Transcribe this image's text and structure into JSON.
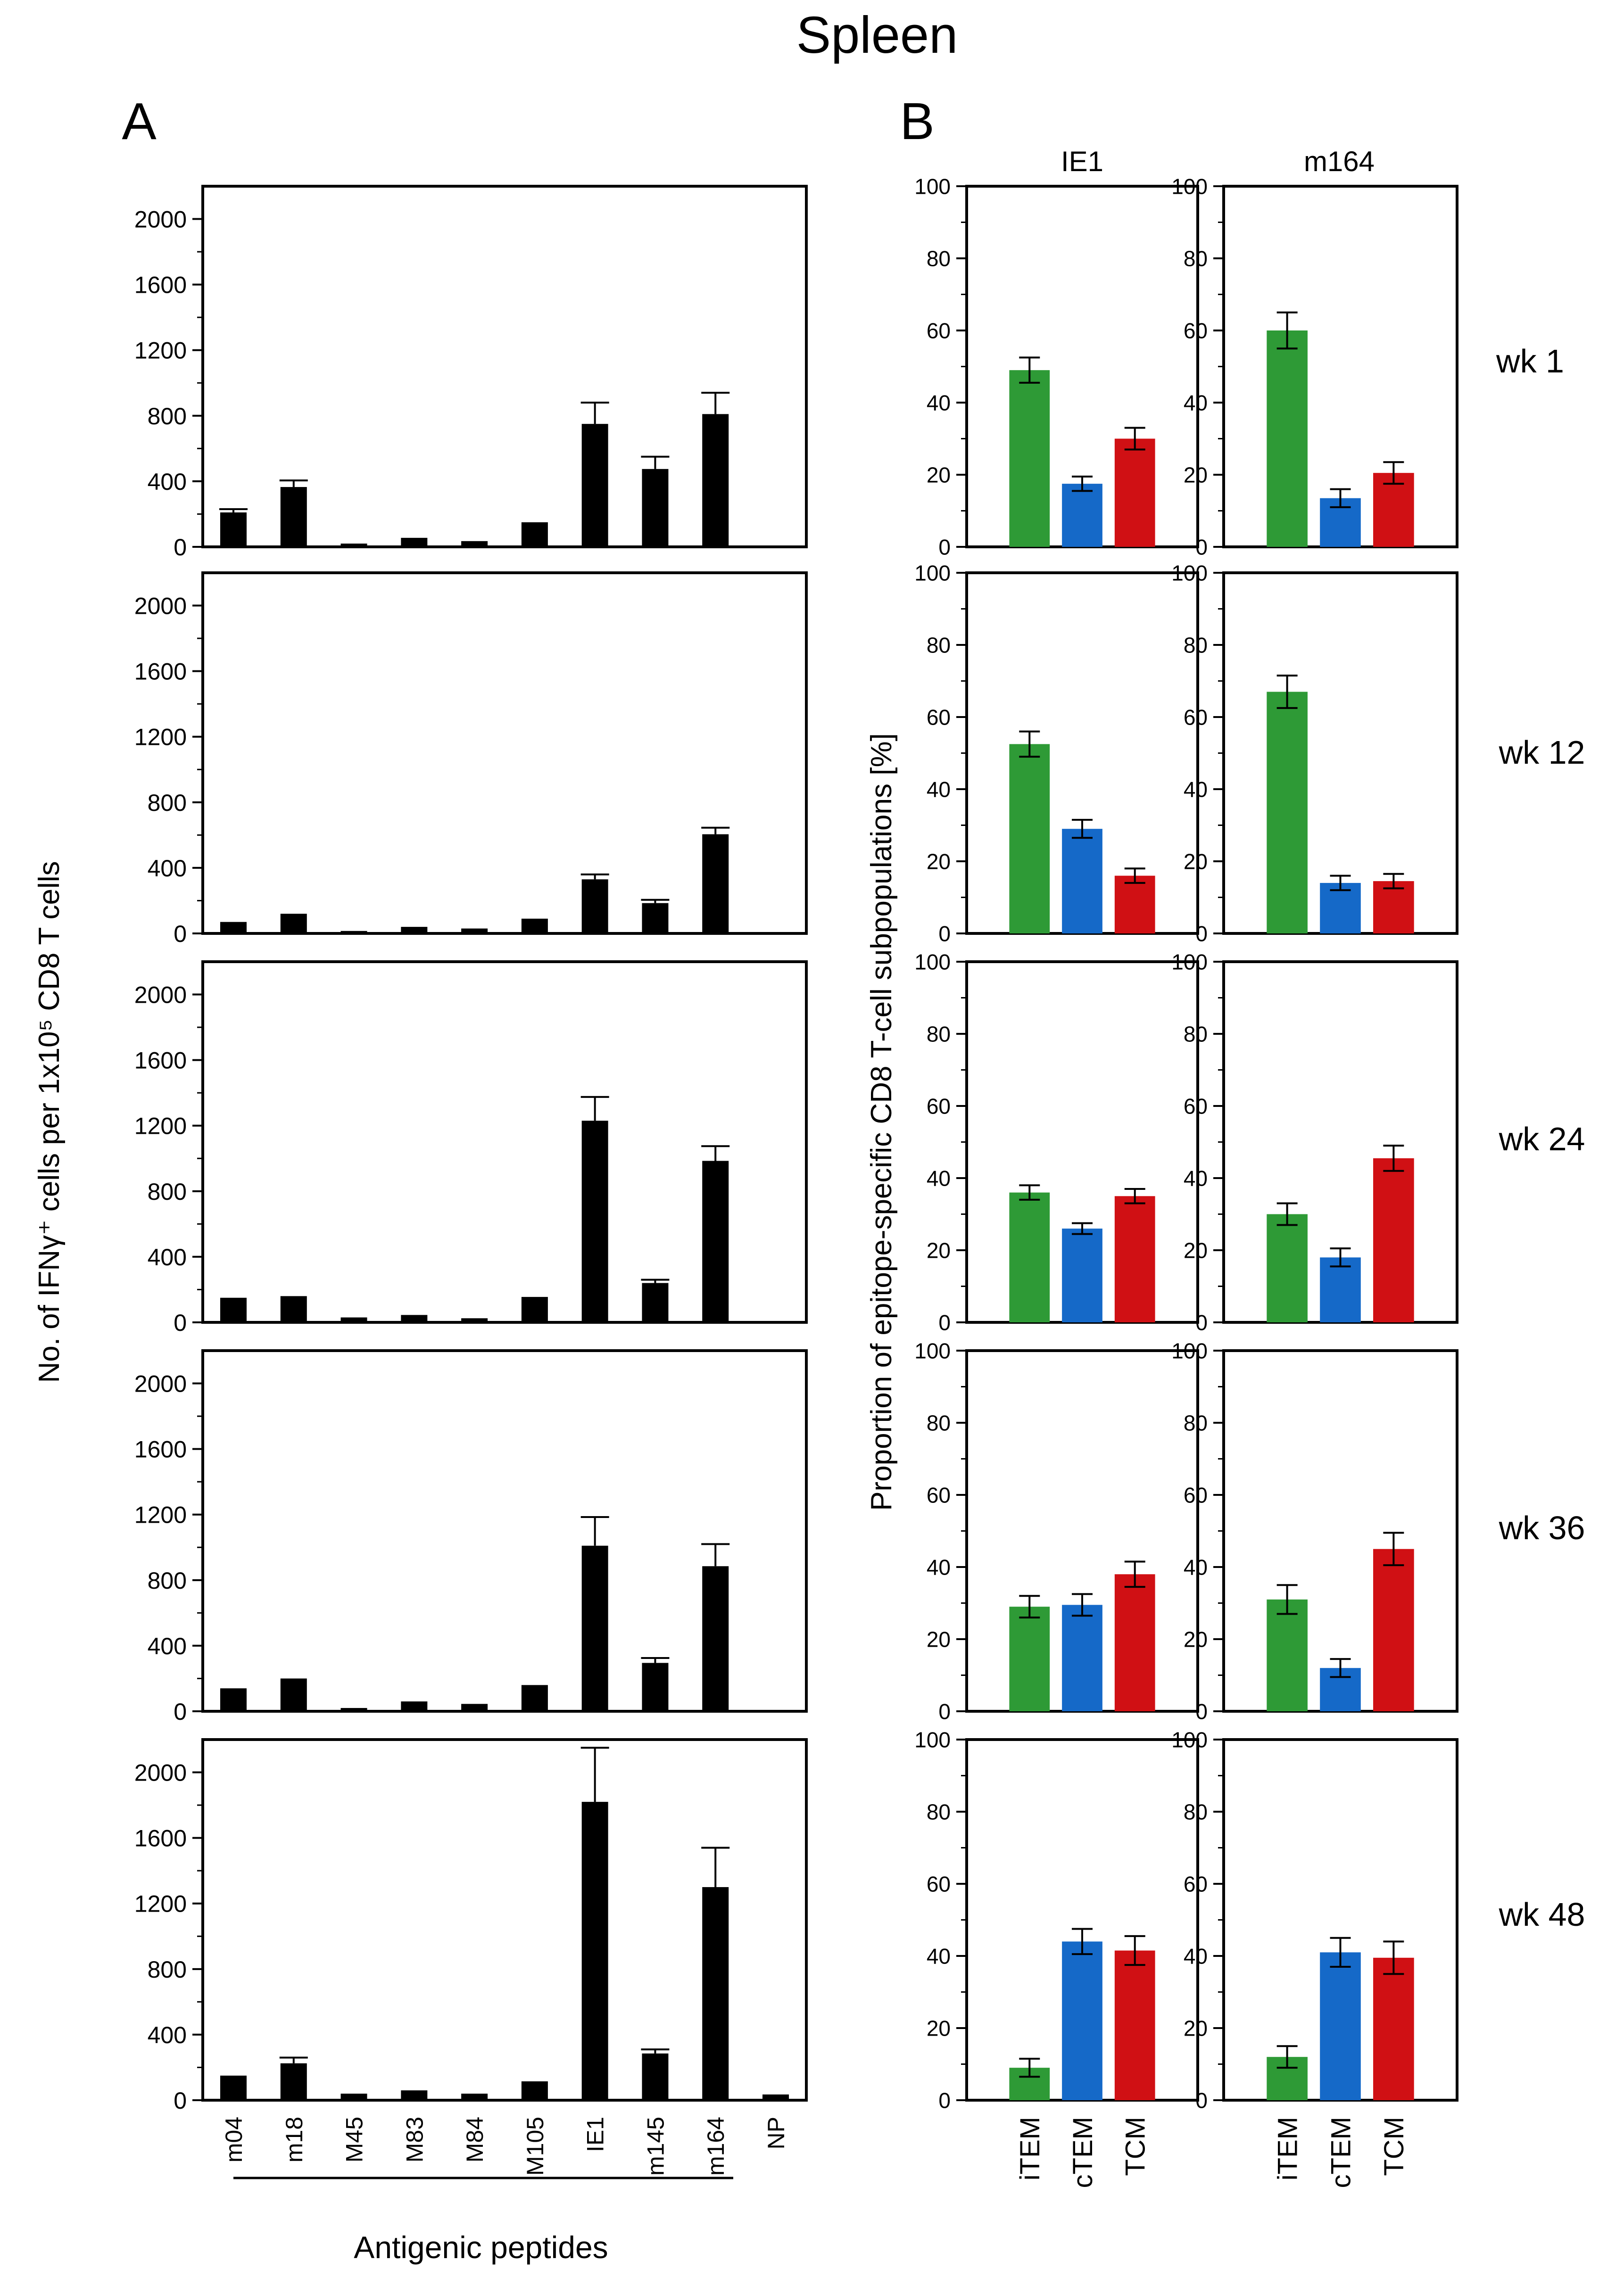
{
  "figure": {
    "title": "Spleen",
    "panel_a_letter": "A",
    "panel_b_letter": "B",
    "panel_a_ylabel": "No. of IFNγ⁺ cells per 1x10⁵ CD8 T cells",
    "panel_a_xlabel": "Antigenic peptides",
    "panel_b_ylabel": "Proportion of epitope-specific CD8 T-cell subpopulations [%]",
    "panel_b_col_titles": [
      "IE1",
      "m164"
    ],
    "row_labels": [
      "wk 1",
      "wk 12",
      "wk 24",
      "wk 36",
      "wk 48"
    ]
  },
  "colors": {
    "bar_a": "#000000",
    "iTEM": "#2e9a36",
    "cTEM": "#1569c8",
    "TCM": "#d01014"
  },
  "chart_data": [
    {
      "type": "bar",
      "panel": "A",
      "row": "wk 1",
      "categories": [
        "m04",
        "m18",
        "M45",
        "M83",
        "M84",
        "M105",
        "IE1",
        "m145",
        "m164",
        "NP"
      ],
      "values": [
        210,
        365,
        20,
        55,
        35,
        150,
        750,
        475,
        810,
        8
      ],
      "errors": [
        20,
        40,
        0,
        0,
        0,
        0,
        130,
        75,
        130,
        0
      ],
      "ylim": [
        0,
        2200
      ],
      "yticks": [
        0,
        400,
        800,
        1200,
        1600,
        2000
      ]
    },
    {
      "type": "bar",
      "panel": "A",
      "row": "wk 12",
      "categories": [
        "m04",
        "m18",
        "M45",
        "M83",
        "M84",
        "M105",
        "IE1",
        "m145",
        "m164",
        "NP"
      ],
      "values": [
        70,
        120,
        15,
        40,
        30,
        90,
        330,
        185,
        605,
        8
      ],
      "errors": [
        0,
        0,
        0,
        0,
        0,
        0,
        30,
        20,
        40,
        0
      ],
      "ylim": [
        0,
        2200
      ],
      "yticks": [
        0,
        400,
        800,
        1200,
        1600,
        2000
      ]
    },
    {
      "type": "bar",
      "panel": "A",
      "row": "wk 24",
      "categories": [
        "m04",
        "m18",
        "M45",
        "M83",
        "M84",
        "M105",
        "IE1",
        "m145",
        "m164",
        "NP"
      ],
      "values": [
        150,
        160,
        30,
        45,
        25,
        155,
        1230,
        240,
        985,
        8
      ],
      "errors": [
        0,
        0,
        0,
        0,
        0,
        0,
        145,
        20,
        90,
        0
      ],
      "ylim": [
        0,
        2200
      ],
      "yticks": [
        0,
        400,
        800,
        1200,
        1600,
        2000
      ]
    },
    {
      "type": "bar",
      "panel": "A",
      "row": "wk 36",
      "categories": [
        "m04",
        "m18",
        "M45",
        "M83",
        "M84",
        "M105",
        "IE1",
        "m145",
        "m164",
        "NP"
      ],
      "values": [
        140,
        200,
        20,
        60,
        45,
        160,
        1010,
        295,
        885,
        8
      ],
      "errors": [
        0,
        0,
        0,
        0,
        0,
        0,
        175,
        30,
        135,
        0
      ],
      "ylim": [
        0,
        2200
      ],
      "yticks": [
        0,
        400,
        800,
        1200,
        1600,
        2000
      ]
    },
    {
      "type": "bar",
      "panel": "A",
      "row": "wk 48",
      "categories": [
        "m04",
        "m18",
        "M45",
        "M83",
        "M84",
        "M105",
        "IE1",
        "m145",
        "m164",
        "NP"
      ],
      "values": [
        150,
        225,
        40,
        60,
        40,
        115,
        1820,
        285,
        1300,
        35
      ],
      "errors": [
        0,
        35,
        0,
        0,
        0,
        0,
        330,
        25,
        240,
        0
      ],
      "ylim": [
        0,
        2200
      ],
      "yticks": [
        0,
        400,
        800,
        1200,
        1600,
        2000
      ]
    },
    {
      "type": "bar",
      "panel": "B",
      "row": "wk 1",
      "column": "IE1",
      "categories": [
        "iTEM",
        "cTEM",
        "TCM"
      ],
      "values": [
        49,
        17.5,
        30
      ],
      "errors": [
        3.5,
        2,
        3
      ],
      "ylim": [
        0,
        100
      ],
      "yticks": [
        0,
        20,
        40,
        60,
        80,
        100
      ]
    },
    {
      "type": "bar",
      "panel": "B",
      "row": "wk 1",
      "column": "m164",
      "categories": [
        "iTEM",
        "cTEM",
        "TCM"
      ],
      "values": [
        60,
        13.5,
        20.5
      ],
      "errors": [
        5,
        2.5,
        3
      ],
      "ylim": [
        0,
        100
      ],
      "yticks": [
        0,
        20,
        40,
        60,
        80,
        100
      ]
    },
    {
      "type": "bar",
      "panel": "B",
      "row": "wk 12",
      "column": "IE1",
      "categories": [
        "iTEM",
        "cTEM",
        "TCM"
      ],
      "values": [
        52.5,
        29,
        16
      ],
      "errors": [
        3.5,
        2.5,
        2
      ],
      "ylim": [
        0,
        100
      ],
      "yticks": [
        0,
        20,
        40,
        60,
        80,
        100
      ]
    },
    {
      "type": "bar",
      "panel": "B",
      "row": "wk 12",
      "column": "m164",
      "categories": [
        "iTEM",
        "cTEM",
        "TCM"
      ],
      "values": [
        67,
        14,
        14.5
      ],
      "errors": [
        4.5,
        2,
        2
      ],
      "ylim": [
        0,
        100
      ],
      "yticks": [
        0,
        20,
        40,
        60,
        80,
        100
      ]
    },
    {
      "type": "bar",
      "panel": "B",
      "row": "wk 24",
      "column": "IE1",
      "categories": [
        "iTEM",
        "cTEM",
        "TCM"
      ],
      "values": [
        36,
        26,
        35
      ],
      "errors": [
        2,
        1.5,
        2
      ],
      "ylim": [
        0,
        100
      ],
      "yticks": [
        0,
        20,
        40,
        60,
        80,
        100
      ]
    },
    {
      "type": "bar",
      "panel": "B",
      "row": "wk 24",
      "column": "m164",
      "categories": [
        "iTEM",
        "cTEM",
        "TCM"
      ],
      "values": [
        30,
        18,
        45.5
      ],
      "errors": [
        3,
        2.5,
        3.5
      ],
      "ylim": [
        0,
        100
      ],
      "yticks": [
        0,
        20,
        40,
        60,
        80,
        100
      ]
    },
    {
      "type": "bar",
      "panel": "B",
      "row": "wk 36",
      "column": "IE1",
      "categories": [
        "iTEM",
        "cTEM",
        "TCM"
      ],
      "values": [
        29,
        29.5,
        38
      ],
      "errors": [
        3,
        3,
        3.5
      ],
      "ylim": [
        0,
        100
      ],
      "yticks": [
        0,
        20,
        40,
        60,
        80,
        100
      ]
    },
    {
      "type": "bar",
      "panel": "B",
      "row": "wk 36",
      "column": "m164",
      "categories": [
        "iTEM",
        "cTEM",
        "TCM"
      ],
      "values": [
        31,
        12,
        45
      ],
      "errors": [
        4,
        2.5,
        4.5
      ],
      "ylim": [
        0,
        100
      ],
      "yticks": [
        0,
        20,
        40,
        60,
        80,
        100
      ]
    },
    {
      "type": "bar",
      "panel": "B",
      "row": "wk 48",
      "column": "IE1",
      "categories": [
        "iTEM",
        "cTEM",
        "TCM"
      ],
      "values": [
        9,
        44,
        41.5
      ],
      "errors": [
        2.5,
        3.5,
        4
      ],
      "ylim": [
        0,
        100
      ],
      "yticks": [
        0,
        20,
        40,
        60,
        80,
        100
      ]
    },
    {
      "type": "bar",
      "panel": "B",
      "row": "wk 48",
      "column": "m164",
      "categories": [
        "iTEM",
        "cTEM",
        "TCM"
      ],
      "values": [
        12,
        41,
        39.5
      ],
      "errors": [
        3,
        4,
        4.5
      ],
      "ylim": [
        0,
        100
      ],
      "yticks": [
        0,
        20,
        40,
        60,
        80,
        100
      ]
    }
  ]
}
